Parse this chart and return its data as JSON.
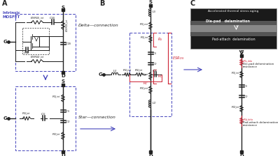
{
  "bg": "#ffffff",
  "blue": "#4444bb",
  "red": "#cc2233",
  "dark": "#222222",
  "gray": "#888888",
  "panel_A": "A",
  "panel_B": "B",
  "panel_C": "C",
  "intrinsic": "Intrinsic\nMOSFET",
  "delta_conn": "Delta—connection",
  "star_conn": "Star—connection",
  "accel": "Accelerated thermal stress aging",
  "die_pad_img": "Die-pad   delamination",
  "pad_attach_img": "Pad-attach  delamination",
  "die_pad_res": "Die-pad delamination\nresistance",
  "pad_attach_res": "Pad-attach delamination\nresistance"
}
